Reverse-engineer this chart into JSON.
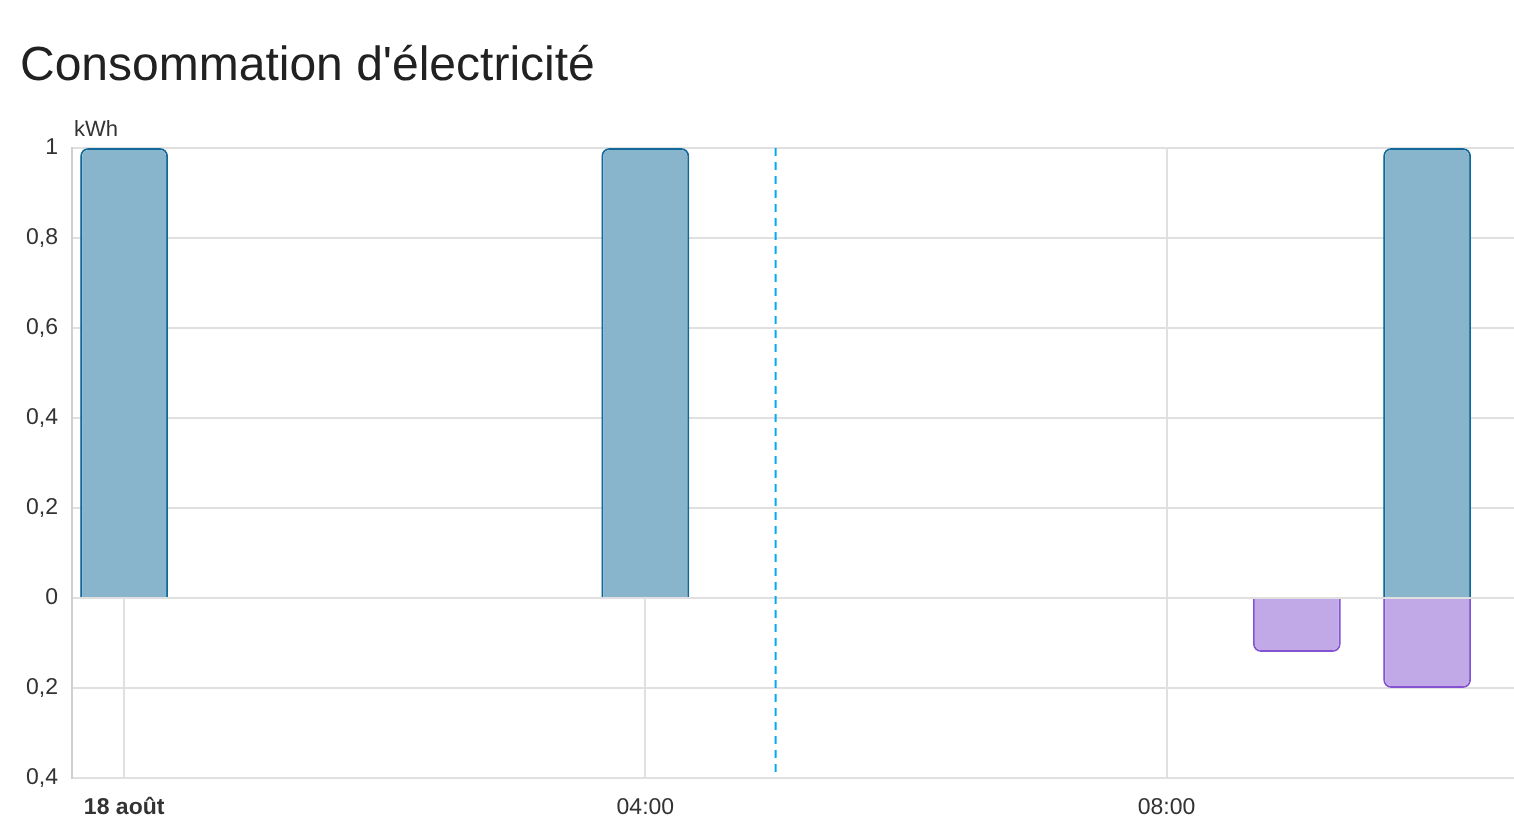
{
  "chart_data": {
    "type": "bar",
    "title": "Consommation d'électricité",
    "ylabel": "kWh",
    "stacked": true,
    "grid": true,
    "series": [
      {
        "color": "#88b4cc",
        "x": [
          "--08-18T00:00",
          "--08-18T04:00",
          "--08-18T10:00"
        ],
        "values": [
          1,
          1,
          1
        ]
      },
      {
        "color": "#c1a9e8",
        "x": [
          "--08-18T09:00",
          "--08-18T10:00"
        ],
        "values": [
          -0.12,
          -0.2
        ]
      }
    ],
    "xlim": [
      "--08-17T23:36",
      "--08-18T10:40"
    ],
    "xticks": [
      {
        "value": "--08-18T00:00",
        "label": "18 août"
      },
      {
        "value": "--08-18T04:00",
        "label": "04:00"
      },
      {
        "value": "--08-18T08:00",
        "label": "08:00"
      }
    ],
    "ylim": [
      -0.4,
      1
    ],
    "yticks": [
      {
        "value": -0.4,
        "label": "0,4"
      },
      {
        "value": -0.2,
        "label": "0,2"
      },
      0,
      {
        "value": 0.2,
        "label": "0,2"
      },
      {
        "value": 0.4,
        "label": "0,4"
      },
      {
        "value": 0.6,
        "label": "0,6"
      },
      {
        "value": 0.8,
        "label": "0,8"
      },
      1
    ],
    "ref_lines": [
      {
        "axis": "x",
        "value": "--08-18T05:00",
        "color": "#03a9f4",
        "line_style": "dashed"
      }
    ]
  }
}
